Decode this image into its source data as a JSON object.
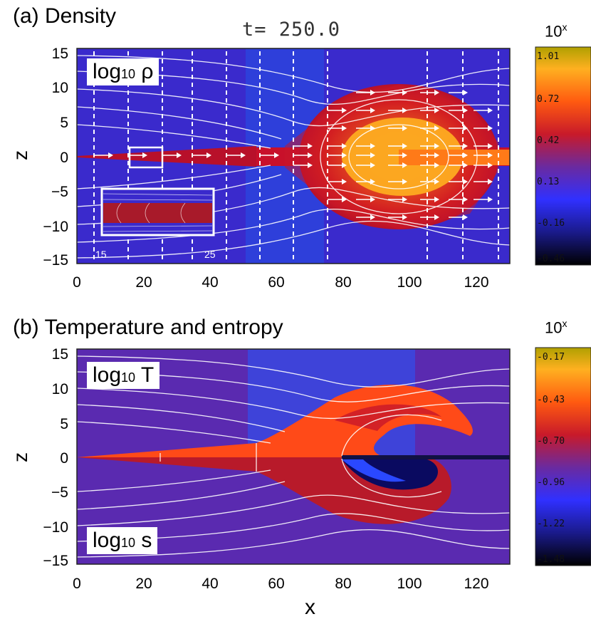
{
  "time_label": "t= 250.0",
  "xlabel": "x",
  "panels": [
    {
      "title": "(a) Density",
      "field_label_base": "log",
      "field_label_sub": "10",
      "field_label_var": " ρ",
      "zlabel": "z",
      "colorbar_exp": "10",
      "colorbar_exp_sup": "x",
      "colorbar_ticks": [
        "1.01",
        "0.72",
        "0.42",
        "0.13",
        "-0.16",
        "-0.46"
      ],
      "inset_ticks": [
        "15",
        "25"
      ],
      "colors": [
        "#0a0a2e",
        "#2b2bff",
        "#4a2bb0",
        "#c0182a",
        "#ff4a10",
        "#ffb020",
        "#b0a000"
      ]
    },
    {
      "title": "(b) Temperature and entropy",
      "field_label_base": "log",
      "field_label_sub": "10",
      "field_label_var": " T",
      "field_label2_base": "log",
      "field_label2_sub": "10",
      "field_label2_var": " s",
      "zlabel": "z",
      "colorbar_exp": "10",
      "colorbar_exp_sup": "x",
      "colorbar_ticks": [
        "-0.17",
        "-0.43",
        "-0.70",
        "-0.96",
        "-1.22",
        "-1.48"
      ],
      "colors": [
        "#0a0a2e",
        "#2b2bff",
        "#4a2bb0",
        "#c0182a",
        "#ff4a10",
        "#ffb020",
        "#b0a000"
      ]
    }
  ],
  "chart_data": [
    {
      "type": "heatmap",
      "title": "(a) Density",
      "subtitle": "t= 250.0",
      "xlabel": "",
      "ylabel": "z",
      "xlim": [
        0,
        130
      ],
      "ylim": [
        -15,
        15
      ],
      "xticks": [
        0,
        20,
        40,
        60,
        80,
        100,
        120
      ],
      "yticks": [
        15,
        10,
        5,
        0,
        -5,
        -10,
        -15
      ],
      "colorbar_label": "10^x",
      "colorbar_range": [
        -0.46,
        1.01
      ],
      "colorbar_ticks": [
        1.01,
        0.72,
        0.42,
        0.13,
        -0.16,
        -0.46
      ],
      "overlays": [
        "field lines",
        "velocity arrows",
        "inset x 15-25"
      ]
    },
    {
      "type": "heatmap",
      "title": "(b) Temperature and entropy",
      "xlabel": "x",
      "ylabel": "z",
      "xlim": [
        0,
        130
      ],
      "ylim": [
        -15,
        15
      ],
      "xticks": [
        0,
        20,
        40,
        60,
        80,
        100,
        120
      ],
      "yticks": [
        15,
        10,
        5,
        0,
        -5,
        -10,
        -15
      ],
      "colorbar_label": "10^x",
      "colorbar_range": [
        -1.48,
        -0.17
      ],
      "colorbar_ticks": [
        -0.17,
        -0.43,
        -0.7,
        -0.96,
        -1.22,
        -1.48
      ],
      "overlays": [
        "field lines"
      ]
    }
  ]
}
